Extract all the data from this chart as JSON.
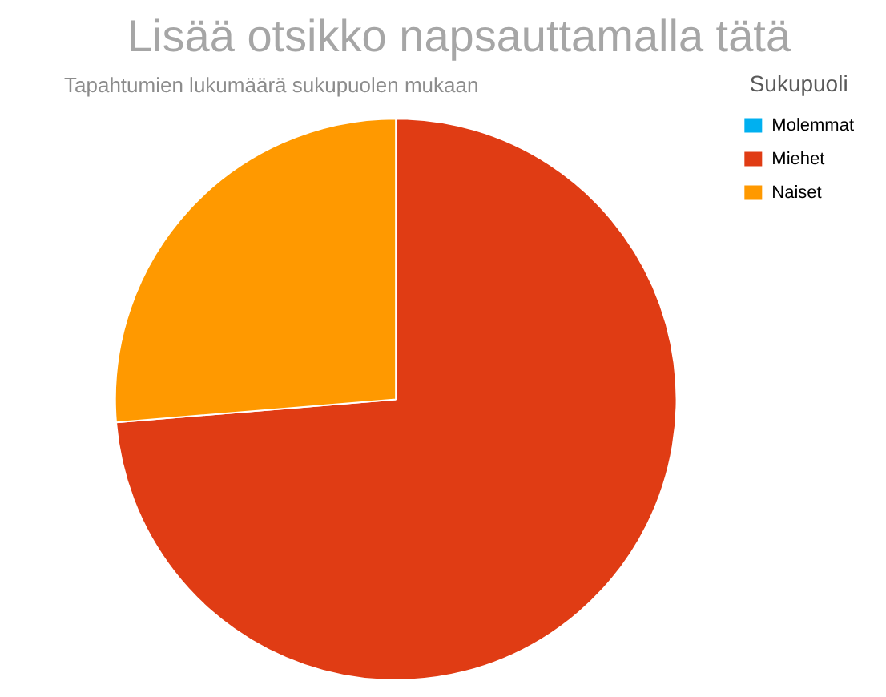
{
  "chart_data": {
    "type": "pie",
    "title": "Lisää otsikko napsauttamalla tätä",
    "subtitle": "Tapahtumien lukumäärä sukupuolen mukaan",
    "legend_title": "Sukupuoli",
    "categories": [
      "Molemmat",
      "Miehet",
      "Naiset"
    ],
    "values": [
      0,
      73.7,
      26.3
    ],
    "colors": [
      "#00b0f0",
      "#e03c14",
      "#ff9900"
    ],
    "legend": "top right"
  }
}
